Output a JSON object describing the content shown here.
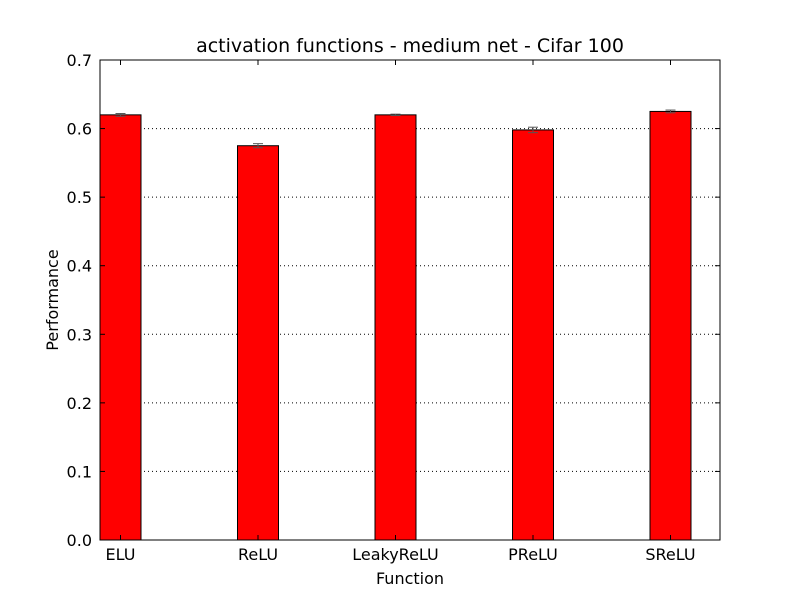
{
  "chart_data": {
    "type": "bar",
    "title": "activation functions - medium net - Cifar 100",
    "xlabel": "Function",
    "ylabel": "Performance",
    "categories": [
      "ELU",
      "ReLU",
      "LeakyReLU",
      "PReLU",
      "SReLU"
    ],
    "values": [
      0.62,
      0.575,
      0.62,
      0.598,
      0.625
    ],
    "errors": [
      0.002,
      0.003,
      0.001,
      0.004,
      0.002
    ],
    "ylim": [
      0.0,
      0.7
    ],
    "yticks": [
      0.0,
      0.1,
      0.2,
      0.3,
      0.4,
      0.5,
      0.6,
      0.7
    ],
    "ytick_labels": [
      "0.0",
      "0.1",
      "0.2",
      "0.3",
      "0.4",
      "0.5",
      "0.6",
      "0.7"
    ],
    "grid": "y-dotted",
    "bar_color": "#ff0000",
    "edge_color": "#000000"
  }
}
